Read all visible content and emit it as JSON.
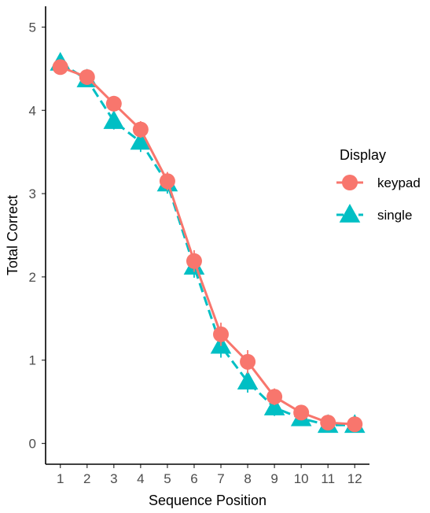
{
  "chart_data": {
    "type": "line",
    "xlabel": "Sequence Position",
    "ylabel": "Total Correct",
    "x": [
      1,
      2,
      3,
      4,
      5,
      6,
      7,
      8,
      9,
      10,
      11,
      12
    ],
    "xlim": [
      0.45,
      12.55
    ],
    "ylim": [
      -0.25,
      5.25
    ],
    "yticks": [
      0,
      1,
      2,
      3,
      4,
      5
    ],
    "legend": {
      "title": "Display",
      "position": "right"
    },
    "grid": false,
    "series": [
      {
        "name": "keypad",
        "color": "#F8766D",
        "marker": "circle",
        "linestyle": "solid",
        "values": [
          4.52,
          4.4,
          4.08,
          3.77,
          3.15,
          2.19,
          1.31,
          0.98,
          0.56,
          0.37,
          0.25,
          0.23
        ],
        "err": [
          0.06,
          0.07,
          0.08,
          0.1,
          0.11,
          0.13,
          0.14,
          0.14,
          0.1,
          0.08,
          0.06,
          0.05
        ]
      },
      {
        "name": "single",
        "color": "#00BFC4",
        "marker": "triangle",
        "linestyle": "dashed",
        "values": [
          4.57,
          4.37,
          3.87,
          3.62,
          3.12,
          2.12,
          1.17,
          0.74,
          0.43,
          0.3,
          0.22,
          0.22
        ],
        "err": [
          0.06,
          0.07,
          0.1,
          0.12,
          0.12,
          0.13,
          0.14,
          0.13,
          0.1,
          0.08,
          0.06,
          0.05
        ]
      }
    ]
  }
}
